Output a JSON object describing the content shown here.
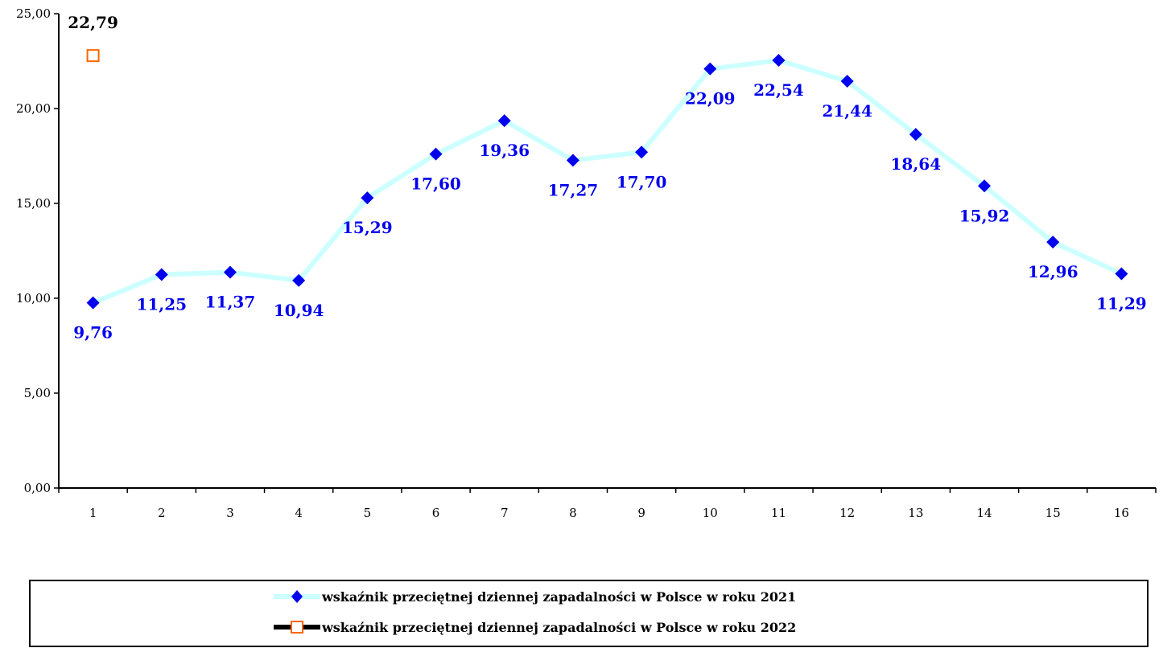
{
  "chart_data": {
    "type": "line",
    "x": [
      1,
      2,
      3,
      4,
      5,
      6,
      7,
      8,
      9,
      10,
      11,
      12,
      13,
      14,
      15,
      16
    ],
    "x_tick_labels": [
      "1",
      "2",
      "3",
      "4",
      "5",
      "6",
      "7",
      "8",
      "9",
      "10",
      "11",
      "12",
      "13",
      "14",
      "15",
      "16"
    ],
    "y_tick_labels": [
      "0,00",
      "5,00",
      "10,00",
      "15,00",
      "20,00",
      "25,00"
    ],
    "ylim": [
      0,
      25
    ],
    "grid": false,
    "legend_position": "bottom",
    "series": [
      {
        "name": "wskaźnik przeciętnej dziennej zapadalności w Polsce w roku 2021",
        "x": [
          1,
          2,
          3,
          4,
          5,
          6,
          7,
          8,
          9,
          10,
          11,
          12,
          13,
          14,
          15,
          16
        ],
        "values": [
          9.76,
          11.25,
          11.37,
          10.94,
          15.29,
          17.6,
          19.36,
          17.27,
          17.7,
          22.09,
          22.54,
          21.44,
          18.64,
          15.92,
          12.96,
          11.29
        ],
        "labels": [
          "9,76",
          "11,25",
          "11,37",
          "10,94",
          "15,29",
          "17,60",
          "19,36",
          "17,27",
          "17,70",
          "22,09",
          "22,54",
          "21,44",
          "18,64",
          "15,92",
          "12,96",
          "11,29"
        ],
        "line_color": "#ccffff",
        "marker_color": "#0000ee",
        "label_color": "#0000ee",
        "marker": "diamond"
      },
      {
        "name": "wskaźnik przeciętnej dziennej zapadalności w Polsce w roku 2022",
        "x": [
          1
        ],
        "values": [
          22.79
        ],
        "labels": [
          "22,79"
        ],
        "line_color": "#000000",
        "marker_color": "#ff6600",
        "label_color": "#000000",
        "marker": "square-open"
      }
    ]
  }
}
